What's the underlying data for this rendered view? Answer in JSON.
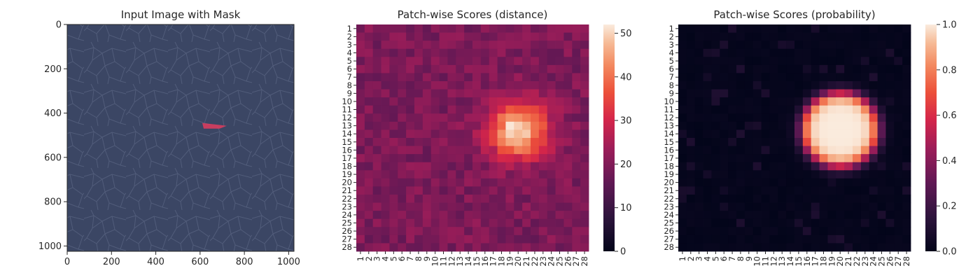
{
  "chart_data": [
    {
      "type": "image",
      "title": "Input Image with Mask",
      "xlim": [
        0,
        1024
      ],
      "ylim": [
        1024,
        0
      ],
      "x_ticks": [
        0,
        200,
        400,
        600,
        800,
        1000
      ],
      "y_ticks": [
        0,
        200,
        400,
        600,
        800,
        1000
      ],
      "image_base_color": "#3b4664",
      "mask_color": "#e03c5e",
      "mask_region": {
        "x_range": [
          610,
          720
        ],
        "y_range": [
          445,
          470
        ]
      }
    },
    {
      "type": "heatmap",
      "title": "Patch-wise Scores (distance)",
      "rows": 28,
      "cols": 28,
      "x_ticks": [
        "1",
        "2",
        "3",
        "4",
        "5",
        "6",
        "7",
        "8",
        "9",
        "10",
        "11",
        "12",
        "13",
        "14",
        "15",
        "16",
        "17",
        "18",
        "19",
        "20",
        "21",
        "22",
        "23",
        "24",
        "25",
        "26",
        "27",
        "28"
      ],
      "y_ticks": [
        "1",
        "2",
        "3",
        "4",
        "5",
        "6",
        "7",
        "8",
        "9",
        "10",
        "11",
        "12",
        "13",
        "14",
        "15",
        "16",
        "17",
        "18",
        "19",
        "20",
        "21",
        "22",
        "23",
        "24",
        "25",
        "26",
        "27",
        "28"
      ],
      "colorbar": {
        "min": 0,
        "max": 52,
        "ticks": [
          "0",
          "10",
          "20",
          "30",
          "40",
          "50"
        ]
      },
      "colormap": "rocket",
      "peak": {
        "col": 20,
        "row": 13.5,
        "value": 52
      },
      "baseline_range": [
        16,
        23
      ]
    },
    {
      "type": "heatmap",
      "title": "Patch-wise Scores (probability)",
      "rows": 28,
      "cols": 28,
      "x_ticks": [
        "1",
        "2",
        "3",
        "4",
        "5",
        "6",
        "7",
        "8",
        "9",
        "10",
        "11",
        "12",
        "13",
        "14",
        "15",
        "16",
        "17",
        "18",
        "19",
        "20",
        "21",
        "22",
        "23",
        "24",
        "25",
        "26",
        "27",
        "28"
      ],
      "y_ticks": [
        "1",
        "2",
        "3",
        "4",
        "5",
        "6",
        "7",
        "8",
        "9",
        "10",
        "11",
        "12",
        "13",
        "14",
        "15",
        "16",
        "17",
        "18",
        "19",
        "20",
        "21",
        "22",
        "23",
        "24",
        "25",
        "26",
        "27",
        "28"
      ],
      "colorbar": {
        "min": 0.0,
        "max": 1.0,
        "ticks": [
          "0.0",
          "0.2",
          "0.4",
          "0.6",
          "0.8",
          "1.0"
        ]
      },
      "colormap": "rocket",
      "peak": {
        "col": 20,
        "row": 13.5,
        "value": 1.0
      }
    }
  ]
}
